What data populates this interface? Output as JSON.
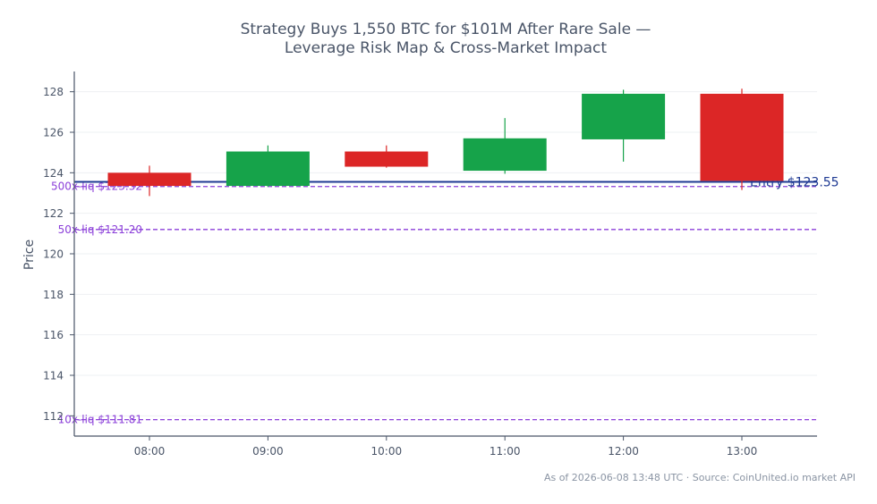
{
  "chart_data": {
    "type": "candlestick",
    "title_lines": [
      "Strategy Buys 1,550 BTC for $101M After Rare Sale —",
      "Leverage Risk Map & Cross-Market Impact"
    ],
    "xlabel": "",
    "ylabel": "Price",
    "ylim": [
      111,
      129
    ],
    "yticks": [
      112,
      114,
      116,
      118,
      120,
      122,
      124,
      126,
      128
    ],
    "grid": true,
    "candles": [
      {
        "time": "08:00",
        "open": 124.0,
        "high": 124.35,
        "low": 122.85,
        "close": 123.35
      },
      {
        "time": "09:00",
        "open": 123.35,
        "high": 125.35,
        "low": 123.3,
        "close": 125.05
      },
      {
        "time": "10:00",
        "open": 125.05,
        "high": 125.35,
        "low": 124.25,
        "close": 124.3
      },
      {
        "time": "11:00",
        "open": 124.1,
        "high": 126.7,
        "low": 123.95,
        "close": 125.7
      },
      {
        "time": "12:00",
        "open": 125.65,
        "high": 128.1,
        "low": 124.55,
        "close": 127.9
      },
      {
        "time": "13:00",
        "open": 127.9,
        "high": 128.15,
        "low": 123.15,
        "close": 123.6
      }
    ],
    "entry": {
      "label": "Entry $123.55",
      "value": 123.55
    },
    "liquidation_levels": [
      {
        "label": "500x-liq $123.32",
        "value": 123.32
      },
      {
        "label": "50x-liq $121.20",
        "value": 121.2
      },
      {
        "label": "10x-liq $111.81",
        "value": 111.81
      }
    ],
    "colors": {
      "up": "#16a34a",
      "down": "#dc2626",
      "entry": "#1f3a93",
      "liq": "#8b3fd9",
      "axis": "#4a5568",
      "grid": "#eef0f3"
    }
  },
  "footer": "As of 2026-06-08 13:48 UTC · Source: CoinUnited.io market API"
}
